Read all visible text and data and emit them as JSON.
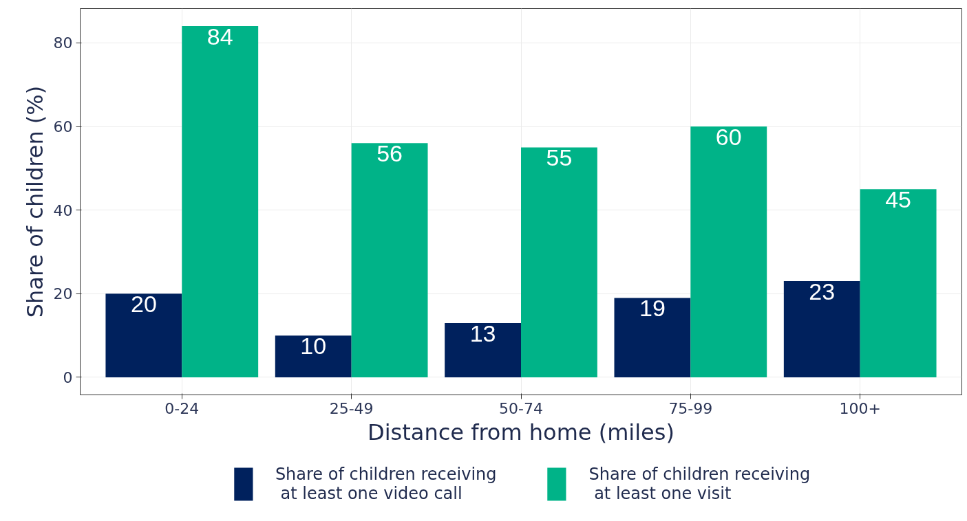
{
  "chart_data": {
    "type": "bar",
    "xlabel": "Distance from home (miles)",
    "ylabel": "Share of children (%)",
    "categories": [
      "0-24",
      "25-49",
      "50-74",
      "75-99",
      "100+"
    ],
    "series": [
      {
        "name": "Share of children receiving\n at least one video call",
        "color": "#00215d",
        "values": [
          20,
          10,
          13,
          19,
          23
        ]
      },
      {
        "name": "Share of children receiving\n at least one visit",
        "color": "#00b388",
        "values": [
          84,
          56,
          55,
          60,
          45
        ]
      }
    ],
    "ylim": [
      -4.2,
      88.2
    ],
    "yticks": [
      0,
      20,
      40,
      60,
      80
    ],
    "grid": true,
    "legend": "bottom",
    "data_labels": true
  }
}
